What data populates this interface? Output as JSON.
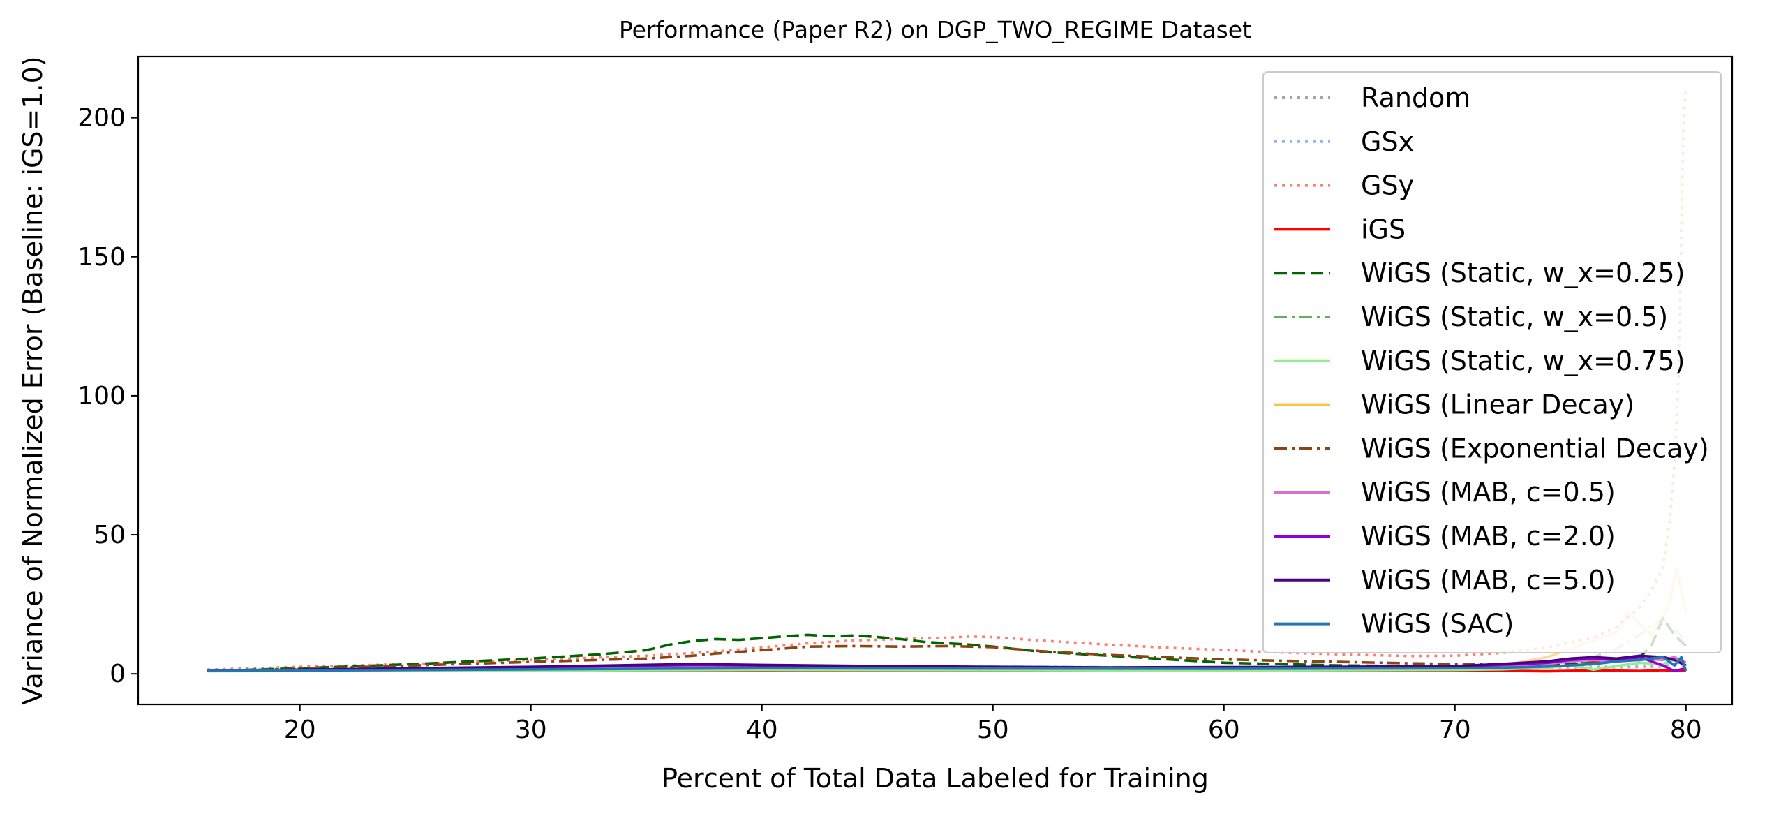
{
  "chart_data": {
    "type": "line",
    "title": "Performance (Paper R2) on DGP_TWO_REGIME Dataset",
    "xlabel": "Percent of Total Data Labeled for Training",
    "ylabel": "Variance of Normalized Error (Baseline: iGS=1.0)",
    "xlim": [
      13,
      82
    ],
    "ylim": [
      -11,
      222
    ],
    "xticks": [
      20,
      30,
      40,
      50,
      60,
      70,
      80
    ],
    "yticks": [
      0,
      50,
      100,
      150,
      200
    ],
    "grid": false,
    "legend_position": "top-right",
    "series": [
      {
        "name": "Random",
        "color": "#808080",
        "dash": "dotted",
        "alpha": 0.5,
        "x": [
          16,
          20,
          25,
          30,
          35,
          40,
          45,
          50,
          55,
          60,
          65,
          70,
          72,
          74,
          76,
          78,
          79,
          79.5,
          80
        ],
        "y": [
          1,
          1.1,
          1.2,
          1.3,
          1.5,
          1.6,
          1.7,
          1.6,
          1.5,
          1.6,
          1.7,
          1.8,
          1.9,
          2.0,
          2.2,
          2.4,
          2.6,
          2.8,
          3
        ]
      },
      {
        "name": "GSx",
        "color": "#6495ed",
        "dash": "dotted",
        "alpha": 0.5,
        "x": [
          16,
          20,
          25,
          30,
          35,
          40,
          45,
          50,
          55,
          60,
          65,
          70,
          72,
          74,
          76,
          78,
          79,
          79.5,
          80
        ],
        "y": [
          1,
          1.2,
          1.4,
          1.6,
          1.8,
          2.0,
          2.1,
          2.0,
          1.9,
          2.0,
          2.1,
          2.2,
          2.4,
          2.6,
          2.8,
          3.0,
          3.2,
          3.4,
          3.6
        ]
      },
      {
        "name": "GSy",
        "color": "#fa8072",
        "dash": "dotted",
        "alpha": 1,
        "x": [
          16,
          20,
          25,
          30,
          35,
          38,
          40,
          42,
          44,
          46,
          48,
          49,
          50,
          52,
          55,
          58,
          60,
          62,
          65,
          68,
          70,
          72,
          74,
          76,
          77,
          78,
          78.5,
          79,
          79.3,
          79.5,
          79.7,
          79.8,
          79.9,
          80
        ],
        "y": [
          1.5,
          2.5,
          3.6,
          5,
          6.5,
          8,
          9.5,
          11,
          12,
          12.5,
          13,
          13.4,
          13.2,
          12,
          10.5,
          9.2,
          8.6,
          7.8,
          7,
          6.4,
          6.5,
          7.5,
          9.5,
          13,
          17,
          24,
          30,
          38,
          55,
          75,
          110,
          160,
          200,
          210
        ]
      },
      {
        "name": "iGS",
        "color": "#ff0000",
        "dash": "solid",
        "alpha": 1,
        "x": [
          16,
          20,
          30,
          40,
          50,
          60,
          70,
          72,
          74,
          76,
          78,
          79,
          79.5,
          80
        ],
        "y": [
          1,
          1,
          1,
          1,
          1,
          1,
          1,
          1.1,
          0.9,
          1.2,
          1.0,
          1.3,
          1.1,
          1
        ]
      },
      {
        "name": "WiGS (Static, w_x=0.25)",
        "color": "#006400",
        "dash": "dashed",
        "alpha": 1,
        "x": [
          16,
          20,
          25,
          30,
          33,
          35,
          36,
          37,
          38,
          39,
          40,
          41,
          42,
          43,
          44,
          45,
          46,
          47,
          48,
          49,
          50,
          52,
          55,
          58,
          60,
          62,
          65,
          68,
          70,
          72,
          74,
          76,
          78,
          78.5,
          79,
          79.5,
          80
        ],
        "y": [
          1,
          2,
          3.5,
          5.5,
          7,
          8.5,
          10.5,
          11.8,
          12.5,
          12.2,
          12.8,
          13.5,
          14,
          13.5,
          13.8,
          13.2,
          12.5,
          11.5,
          11,
          10.5,
          9.8,
          8,
          6.5,
          5,
          4,
          3.6,
          3,
          2.8,
          2.5,
          2.6,
          3,
          4,
          6,
          10,
          20,
          14,
          10
        ]
      },
      {
        "name": "WiGS (Static, w_x=0.5)",
        "color": "#228b22",
        "dash": "dashdot",
        "alpha": 0.3,
        "x": [
          16,
          20,
          30,
          40,
          50,
          60,
          70,
          72,
          74,
          76,
          77,
          78,
          79,
          79.5,
          80
        ],
        "y": [
          1,
          1.3,
          2,
          3,
          2.6,
          2.2,
          2.4,
          3,
          4,
          6,
          9,
          14,
          20,
          16,
          12
        ]
      },
      {
        "name": "WiGS (Static, w_x=0.75)",
        "color": "#90ee90",
        "dash": "solid",
        "alpha": 1,
        "x": [
          16,
          20,
          30,
          40,
          50,
          60,
          70,
          72,
          74,
          75,
          76,
          77,
          78,
          79,
          79.5,
          80
        ],
        "y": [
          0.9,
          1,
          1.2,
          1.4,
          1.3,
          1.2,
          1.4,
          1.6,
          2.2,
          3,
          1.5,
          2.8,
          4,
          3.5,
          5,
          3
        ]
      },
      {
        "name": "WiGS (Linear Decay)",
        "color": "#ffa500",
        "dash": "solid",
        "alpha": 0.4,
        "x": [
          16,
          20,
          30,
          40,
          50,
          60,
          70,
          72,
          74,
          75,
          76,
          77,
          77.5,
          78,
          78.5,
          79,
          79.3,
          79.6,
          79.8,
          80
        ],
        "y": [
          1,
          1.2,
          1.6,
          2,
          1.8,
          1.6,
          2,
          3,
          6,
          9,
          12,
          15,
          22,
          18,
          14,
          20,
          26,
          38,
          30,
          22
        ]
      },
      {
        "name": "WiGS (Exponential Decay)",
        "color": "#8b4513",
        "dash": "dashdot",
        "alpha": 1,
        "x": [
          16,
          20,
          25,
          30,
          35,
          37,
          38,
          40,
          42,
          44,
          46,
          48,
          50,
          52,
          55,
          58,
          60,
          62,
          65,
          68,
          70,
          72,
          74,
          76,
          78,
          79,
          79.5,
          80
        ],
        "y": [
          1,
          1.8,
          3,
          4.3,
          5.5,
          6.5,
          7.3,
          8.5,
          9.8,
          10,
          9.8,
          10,
          9.6,
          8.2,
          6.8,
          5.8,
          5.2,
          4.8,
          4.3,
          3.8,
          3.5,
          3.6,
          4,
          4.5,
          5,
          6,
          5,
          4
        ]
      },
      {
        "name": "WiGS (MAB, c=0.5)",
        "color": "#da70d6",
        "dash": "solid",
        "alpha": 1,
        "x": [
          16,
          20,
          30,
          37,
          40,
          45,
          50,
          55,
          60,
          65,
          70,
          72,
          74,
          75,
          76,
          77,
          78,
          79,
          79.5,
          80
        ],
        "y": [
          1,
          1.3,
          2,
          2.8,
          2.8,
          2.5,
          2.2,
          2,
          2.1,
          2.2,
          2.5,
          3,
          3.6,
          4.5,
          5,
          4.5,
          5.5,
          5,
          6,
          4
        ]
      },
      {
        "name": "WiGS (MAB, c=2.0)",
        "color": "#9400d3",
        "dash": "solid",
        "alpha": 1,
        "x": [
          16,
          20,
          30,
          37,
          40,
          45,
          50,
          55,
          60,
          65,
          70,
          72,
          74,
          75,
          76,
          77,
          78,
          79,
          79.5,
          80
        ],
        "y": [
          1,
          1.4,
          2.3,
          3.2,
          3,
          2.7,
          2.4,
          2.2,
          2.3,
          2.4,
          2.6,
          3.2,
          4,
          5,
          5.5,
          5,
          6,
          3,
          1,
          2
        ]
      },
      {
        "name": "WiGS (MAB, c=5.0)",
        "color": "#4b0082",
        "dash": "solid",
        "alpha": 1,
        "x": [
          16,
          20,
          30,
          37,
          40,
          45,
          50,
          55,
          60,
          65,
          70,
          72,
          74,
          75,
          76,
          77,
          78,
          79,
          79.5,
          80
        ],
        "y": [
          1,
          1.5,
          2.5,
          3.5,
          3.2,
          2.8,
          2.5,
          2.3,
          2.4,
          2.5,
          2.8,
          3.5,
          4.5,
          5.5,
          6,
          5.5,
          6.5,
          6,
          5,
          3
        ]
      },
      {
        "name": "WiGS (SAC)",
        "color": "#1f77b4",
        "dash": "solid",
        "alpha": 1,
        "x": [
          16,
          20,
          30,
          40,
          50,
          60,
          70,
          72,
          74,
          76,
          77,
          78,
          79,
          79.5,
          79.8,
          80
        ],
        "y": [
          1,
          1.2,
          1.6,
          2,
          1.9,
          1.8,
          2,
          2.2,
          2.6,
          3.5,
          4.5,
          5,
          6,
          3,
          6,
          1
        ]
      }
    ]
  }
}
